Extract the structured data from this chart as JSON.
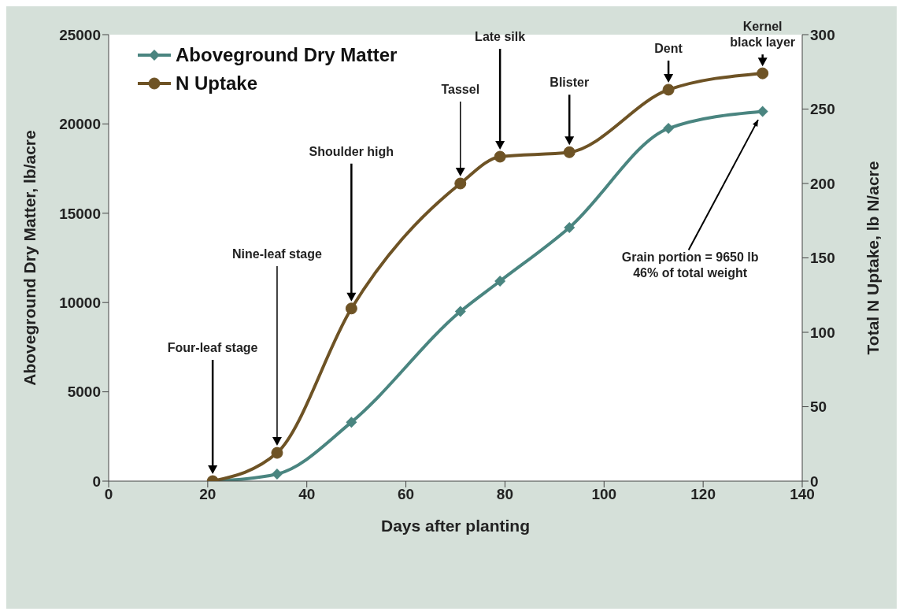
{
  "chart_data": {
    "type": "line",
    "xlabel": "Days after planting",
    "ylabel": "Aboveground Dry Matter, lb/acre",
    "y2label": "Total N Uptake, lb N/acre",
    "x": [
      21,
      34,
      49,
      71,
      79,
      93,
      113,
      132
    ],
    "series": [
      {
        "name": "Aboveground Dry Matter",
        "color": "#4a8580",
        "marker": "diamond",
        "values": [
          0,
          400,
          3300,
          9500,
          11200,
          14200,
          19750,
          20700
        ]
      },
      {
        "name": "N Uptake",
        "color": "#6e5325",
        "marker": "circle",
        "axis": "y2",
        "values": [
          0,
          19,
          116,
          200,
          218,
          221,
          263,
          274
        ]
      }
    ],
    "xlim": [
      0,
      140
    ],
    "xticks": [
      0,
      20,
      40,
      60,
      80,
      100,
      120,
      140
    ],
    "ylim": [
      0,
      25000
    ],
    "yticks": [
      0,
      5000,
      10000,
      15000,
      20000,
      25000
    ],
    "y2lim": [
      0,
      300
    ],
    "y2ticks": [
      0,
      50,
      100,
      150,
      200,
      250,
      300
    ],
    "grid": false,
    "legend": "top left",
    "line_style": "solid",
    "annotations": [
      "Four-leaf stage",
      "Nine-leaf stage",
      "Shoulder high",
      "Tassel",
      "Late silk",
      "Blister",
      "Dent",
      "Kernel\nblack layer",
      "Grain portion = 9650 lb\n46% of total weight"
    ]
  }
}
